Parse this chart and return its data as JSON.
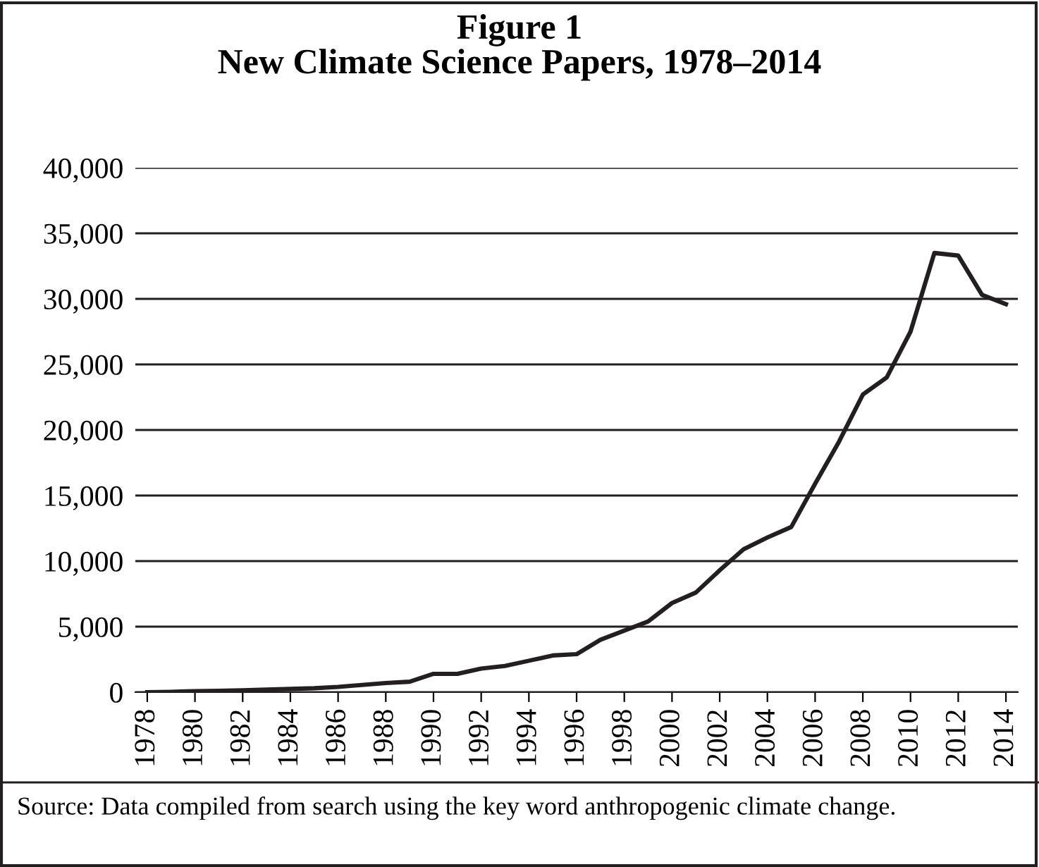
{
  "chart_data": {
    "type": "line",
    "title": "Figure 1\nNew Climate Science Papers, 1978–2014",
    "x": [
      1978,
      1979,
      1980,
      1981,
      1982,
      1983,
      1984,
      1985,
      1986,
      1987,
      1988,
      1989,
      1990,
      1991,
      1992,
      1993,
      1994,
      1995,
      1996,
      1997,
      1998,
      1999,
      2000,
      2001,
      2002,
      2003,
      2004,
      2005,
      2006,
      2007,
      2008,
      2009,
      2010,
      2011,
      2012,
      2013,
      2014
    ],
    "series": [
      {
        "color": "#231f20",
        "values": [
          0,
          30,
          80,
          100,
          150,
          200,
          250,
          300,
          400,
          550,
          700,
          800,
          1400,
          1400,
          1800,
          2000,
          2400,
          2800,
          2900,
          4000,
          4700,
          5400,
          6800,
          7600,
          9300,
          10900,
          11800,
          12600,
          15900,
          19100,
          22700,
          24000,
          27500,
          33500,
          33300,
          30300,
          29600
        ]
      }
    ],
    "xlim": [
      1977.5,
      2014.5
    ],
    "xticks": [
      1978,
      1980,
      1982,
      1984,
      1986,
      1988,
      1990,
      1992,
      1994,
      1996,
      1998,
      2000,
      2002,
      2004,
      2006,
      2008,
      2010,
      2012,
      2014
    ],
    "ylim": [
      0,
      40000
    ],
    "yticks": [
      {
        "value": 0,
        "label": "0"
      },
      {
        "value": 5000,
        "label": "5,000"
      },
      {
        "value": 10000,
        "label": "10,000"
      },
      {
        "value": 15000,
        "label": "15,000"
      },
      {
        "value": 20000,
        "label": "20,000"
      },
      {
        "value": 25000,
        "label": "25,000"
      },
      {
        "value": 30000,
        "label": "30,000"
      },
      {
        "value": 35000,
        "label": "35,000"
      },
      {
        "value": 40000,
        "label": "40,000"
      }
    ],
    "grid": "y",
    "marker": "none",
    "line_style": "solid",
    "legend": false,
    "annotations": [
      "Source: Data compiled from search using the key word anthropogenic climate change."
    ]
  }
}
